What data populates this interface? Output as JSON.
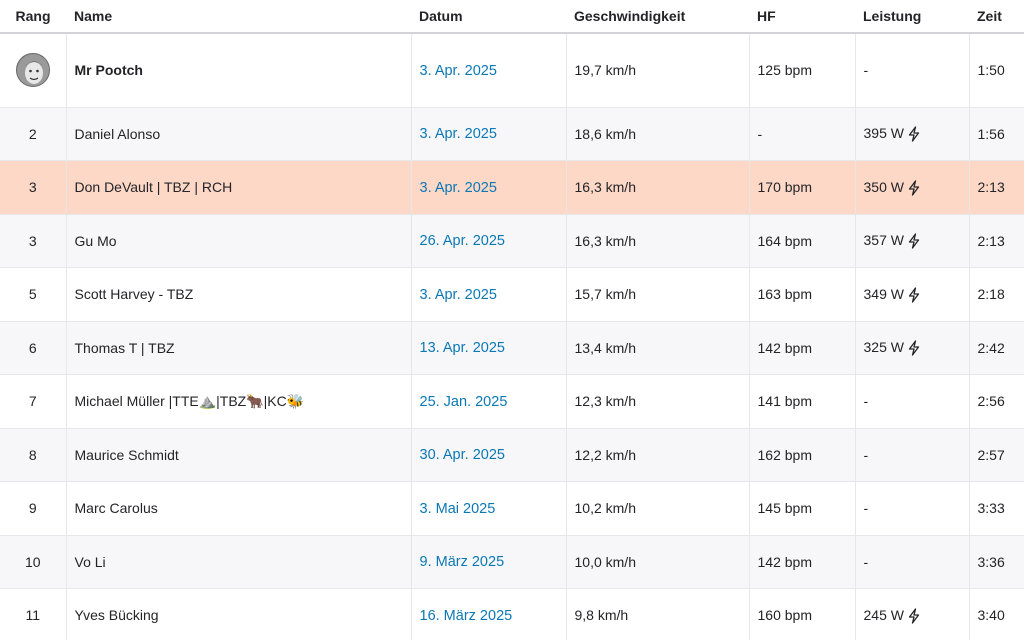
{
  "columns": {
    "rank": "Rang",
    "name": "Name",
    "date": "Datum",
    "speed": "Geschwindigkeit",
    "hr": "HF",
    "power": "Leistung",
    "time": "Zeit"
  },
  "rows": [
    {
      "rank": "",
      "name": "Mr Pootch",
      "date": "3. Apr. 2025",
      "speed": "19,7 km/h",
      "hr": "125 bpm",
      "power": "-",
      "time": "1:50"
    },
    {
      "rank": "2",
      "name": "Daniel Alonso",
      "date": "3. Apr. 2025",
      "speed": "18,6 km/h",
      "hr": "-",
      "power": "395 W",
      "time": "1:56"
    },
    {
      "rank": "3",
      "name": "Don DeVault | TBZ | RCH",
      "date": "3. Apr. 2025",
      "speed": "16,3 km/h",
      "hr": "170 bpm",
      "power": "350 W",
      "time": "2:13"
    },
    {
      "rank": "3",
      "name": "Gu Mo",
      "date": "26. Apr. 2025",
      "speed": "16,3 km/h",
      "hr": "164 bpm",
      "power": "357 W",
      "time": "2:13"
    },
    {
      "rank": "5",
      "name": "Scott Harvey - TBZ",
      "date": "3. Apr. 2025",
      "speed": "15,7 km/h",
      "hr": "163 bpm",
      "power": "349 W",
      "time": "2:18"
    },
    {
      "rank": "6",
      "name": "Thomas T | TBZ",
      "date": "13. Apr. 2025",
      "speed": "13,4 km/h",
      "hr": "142 bpm",
      "power": "325 W",
      "time": "2:42"
    },
    {
      "rank": "7",
      "name": "Michael Müller |TTE⛰️|TBZ🐂|KC🐝",
      "date": "25. Jan. 2025",
      "speed": "12,3 km/h",
      "hr": "141 bpm",
      "power": "-",
      "time": "2:56"
    },
    {
      "rank": "8",
      "name": "Maurice Schmidt",
      "date": "30. Apr. 2025",
      "speed": "12,2 km/h",
      "hr": "162 bpm",
      "power": "-",
      "time": "2:57"
    },
    {
      "rank": "9",
      "name": "Marc Carolus",
      "date": "3. Mai 2025",
      "speed": "10,2 km/h",
      "hr": "145 bpm",
      "power": "-",
      "time": "3:33"
    },
    {
      "rank": "10",
      "name": "Vo Li",
      "date": "9. März 2025",
      "speed": "10,0 km/h",
      "hr": "142 bpm",
      "power": "-",
      "time": "3:36"
    },
    {
      "rank": "11",
      "name": "Yves Bücking",
      "date": "16. März 2025",
      "speed": "9,8 km/h",
      "hr": "160 bpm",
      "power": "245 W",
      "time": "3:40"
    }
  ],
  "icons": {
    "leader": "avatar",
    "power_measured": "lightning-bolt-icon"
  },
  "colors": {
    "date_link": "#0a78b4",
    "highlight_row": "#fdd8c7"
  }
}
